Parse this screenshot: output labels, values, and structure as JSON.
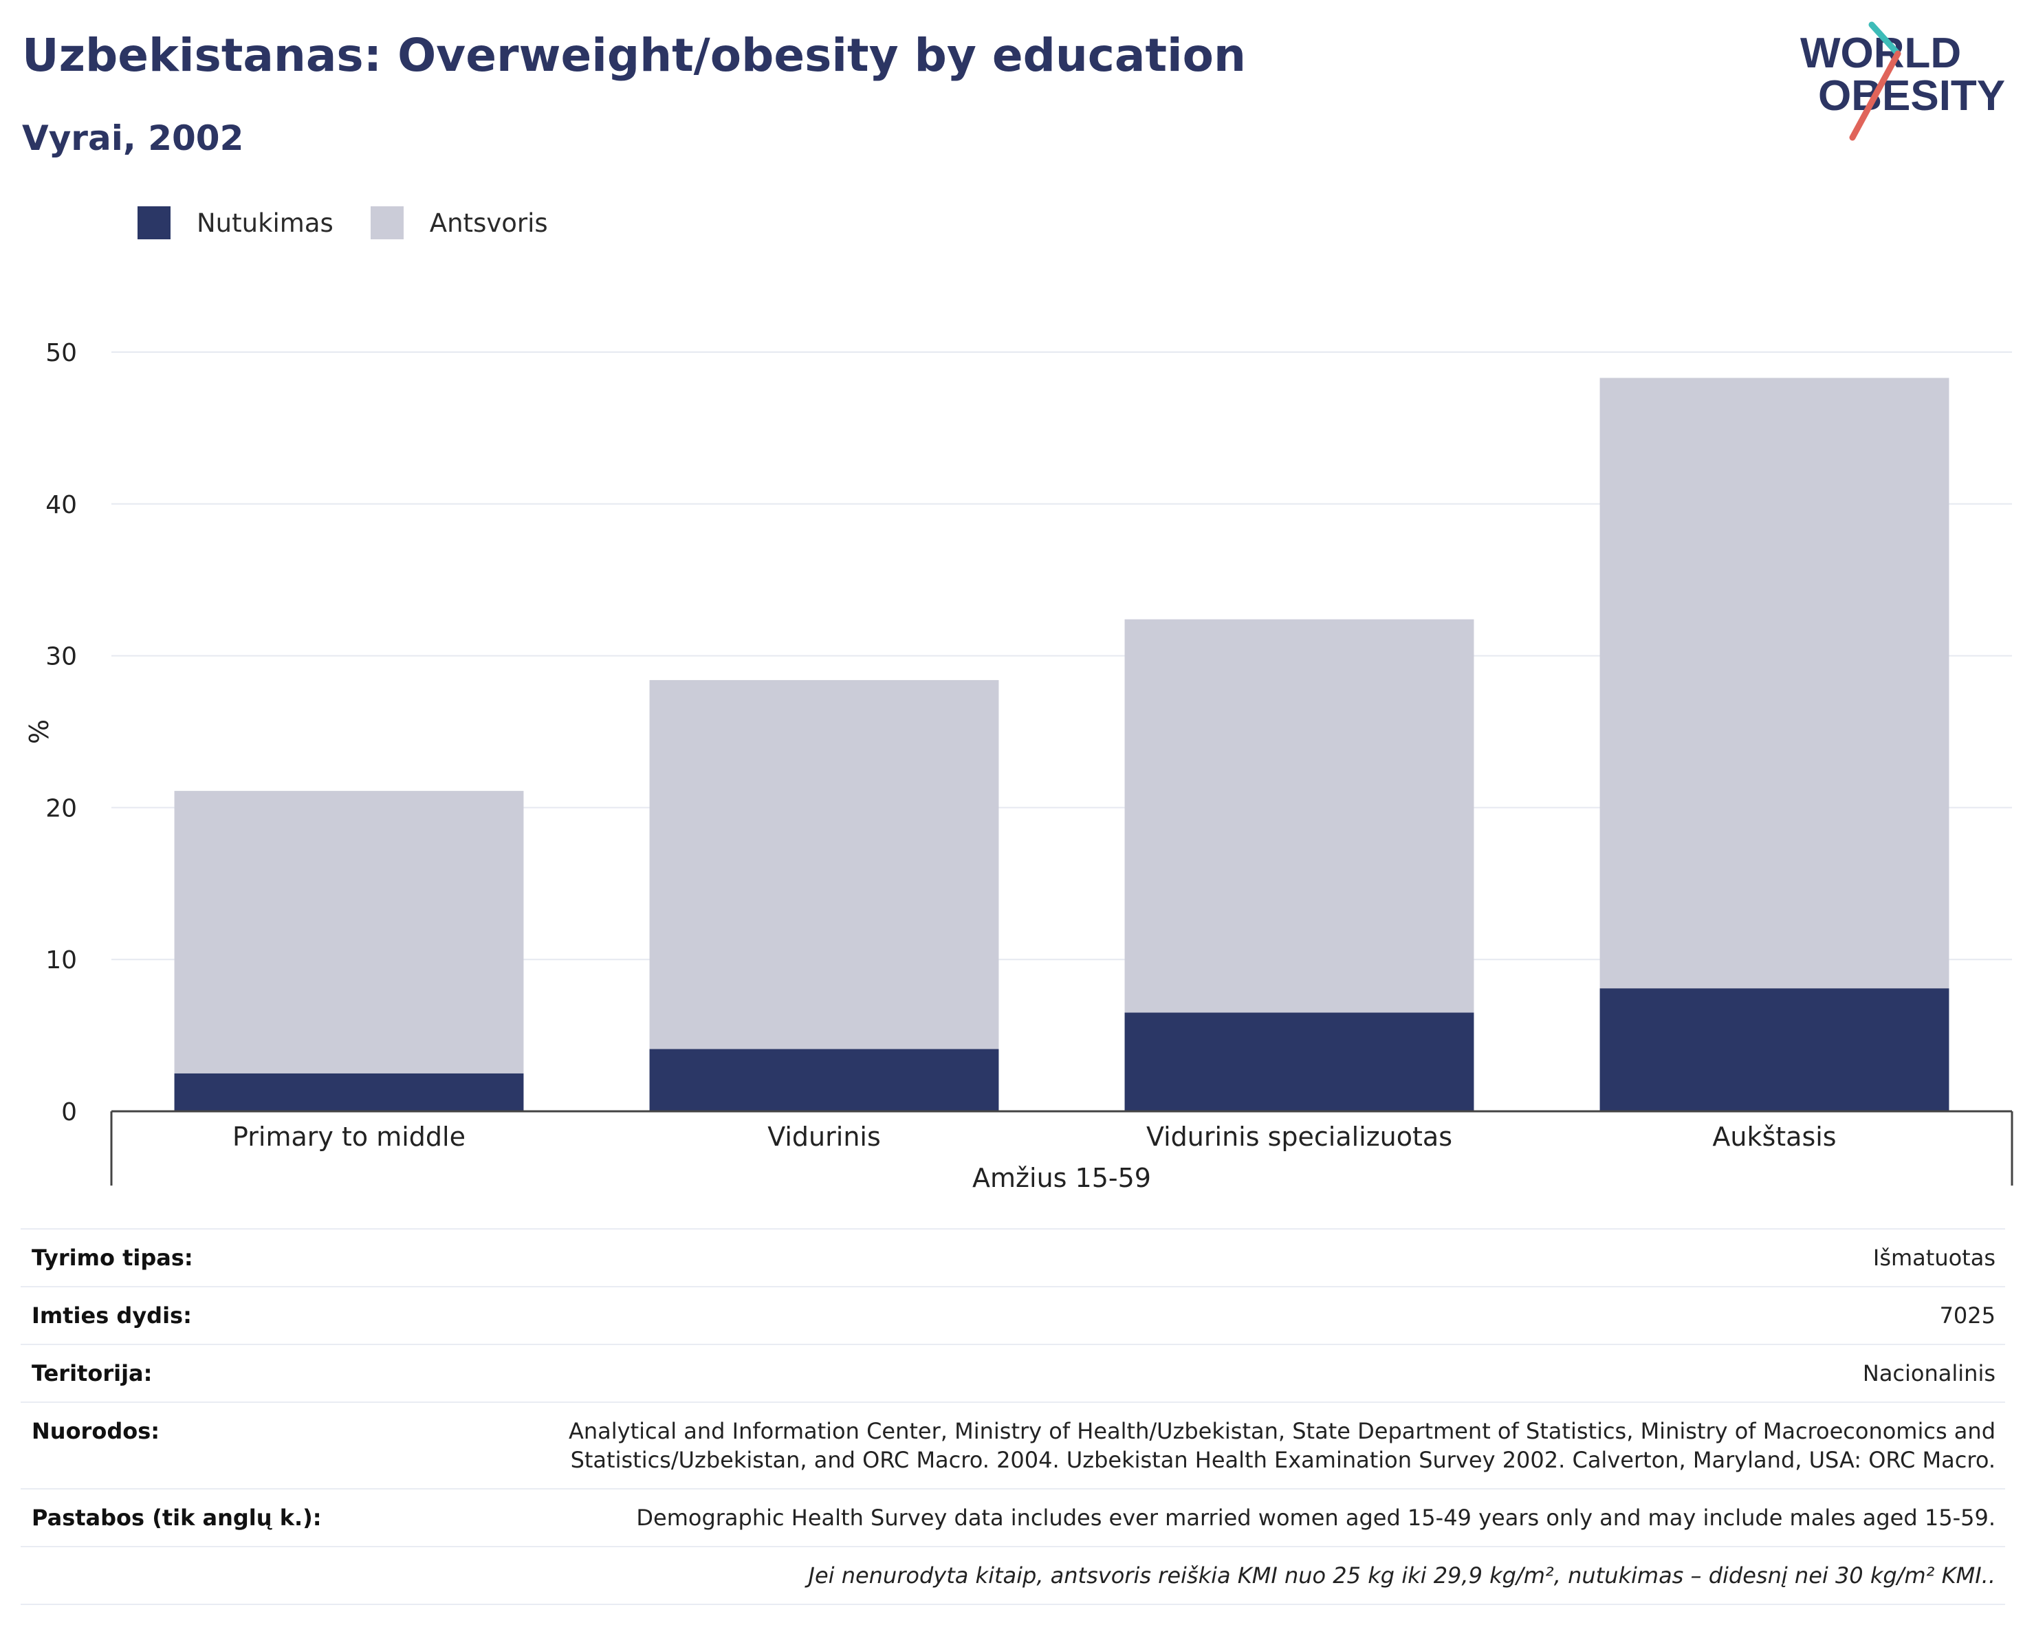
{
  "header": {
    "title": "Uzbekistanas: Overweight/obesity by education",
    "subtitle": "Vyrai, 2002"
  },
  "logo": {
    "line1": "WORLD",
    "line2": "OBESITY",
    "name": "world-obesity-logo"
  },
  "colors": {
    "obesity": "#2b3766",
    "overweight": "#cbccd8",
    "title": "#2c3563",
    "grid": "#e6e9f0",
    "axis": "#444444"
  },
  "legend": [
    {
      "label": "Nutukimas",
      "color": "#2b3766"
    },
    {
      "label": "Antsvoris",
      "color": "#cbccd8"
    }
  ],
  "chart_data": {
    "type": "bar",
    "stacked": true,
    "categories": [
      "Primary to middle",
      "Vidurinis",
      "Vidurinis specializuotas",
      "Aukštasis"
    ],
    "series": [
      {
        "name": "Nutukimas",
        "values": [
          2.5,
          4.1,
          6.5,
          8.1
        ]
      },
      {
        "name": "Antsvoris",
        "values": [
          18.6,
          24.3,
          25.9,
          40.2
        ]
      }
    ],
    "ylabel": "%",
    "xlabel": "Amžius 15-59",
    "ylim": [
      0,
      50
    ],
    "yticks": [
      0,
      10,
      20,
      30,
      40,
      50
    ],
    "grid": true,
    "legend_position": "top-left"
  },
  "info": [
    {
      "label": "Tyrimo tipas:",
      "value": "Išmatuotas"
    },
    {
      "label": "Imties dydis:",
      "value": "7025"
    },
    {
      "label": "Teritorija:",
      "value": "Nacionalinis"
    },
    {
      "label": "Nuorodos:",
      "value": "Analytical and Information Center, Ministry of Health/Uzbekistan, State Department of Statistics, Ministry of Macroeconomics and Statistics/Uzbekistan, and ORC Macro. 2004. Uzbekistan Health Examination Survey 2002. Calverton, Maryland, USA: ORC Macro."
    },
    {
      "label": "Pastabos (tik anglų k.):",
      "value": "Demographic Health Survey data includes ever married women aged 15-49 years only and may include males aged 15-59."
    }
  ],
  "note": "Jei nenurodyta kitaip, antsvoris reiškia KMI nuo 25 kg iki 29,9 kg/m², nutukimas – didesnį nei 30 kg/m² KMI.."
}
